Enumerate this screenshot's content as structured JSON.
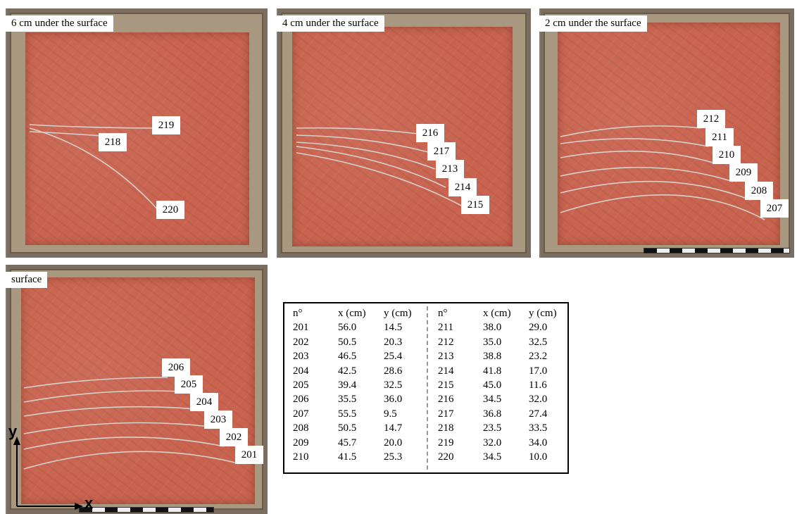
{
  "panels": {
    "p6": {
      "title": "6 cm under the surface",
      "labels": [
        "219",
        "218",
        "220"
      ]
    },
    "p4": {
      "title": "4 cm under the surface",
      "labels": [
        "216",
        "217",
        "213",
        "214",
        "215"
      ]
    },
    "p2": {
      "title": "2 cm under the surface",
      "labels": [
        "212",
        "211",
        "210",
        "209",
        "208",
        "207"
      ]
    },
    "ps": {
      "title": "surface",
      "labels": [
        "206",
        "205",
        "204",
        "203",
        "202",
        "201"
      ]
    }
  },
  "axes": {
    "x": "x",
    "y": "y"
  },
  "table": {
    "headers": [
      "n°",
      "x (cm)",
      "y (cm)",
      "n°",
      "x (cm)",
      "y (cm)"
    ],
    "rows": [
      [
        "201",
        "56.0",
        "14.5",
        "211",
        "38.0",
        "29.0"
      ],
      [
        "202",
        "50.5",
        "20.3",
        "212",
        "35.0",
        "32.5"
      ],
      [
        "203",
        "46.5",
        "25.4",
        "213",
        "38.8",
        "23.2"
      ],
      [
        "204",
        "42.5",
        "28.6",
        "214",
        "41.8",
        "17.0"
      ],
      [
        "205",
        "39.4",
        "32.5",
        "215",
        "45.0",
        "11.6"
      ],
      [
        "206",
        "35.5",
        "36.0",
        "216",
        "34.5",
        "32.0"
      ],
      [
        "207",
        "55.5",
        "9.5",
        "217",
        "36.8",
        "27.4"
      ],
      [
        "208",
        "50.5",
        "14.7",
        "218",
        "23.5",
        "33.5"
      ],
      [
        "209",
        "45.7",
        "20.0",
        "219",
        "32.0",
        "34.0"
      ],
      [
        "210",
        "41.5",
        "25.3",
        "220",
        "34.5",
        "10.0"
      ]
    ]
  }
}
